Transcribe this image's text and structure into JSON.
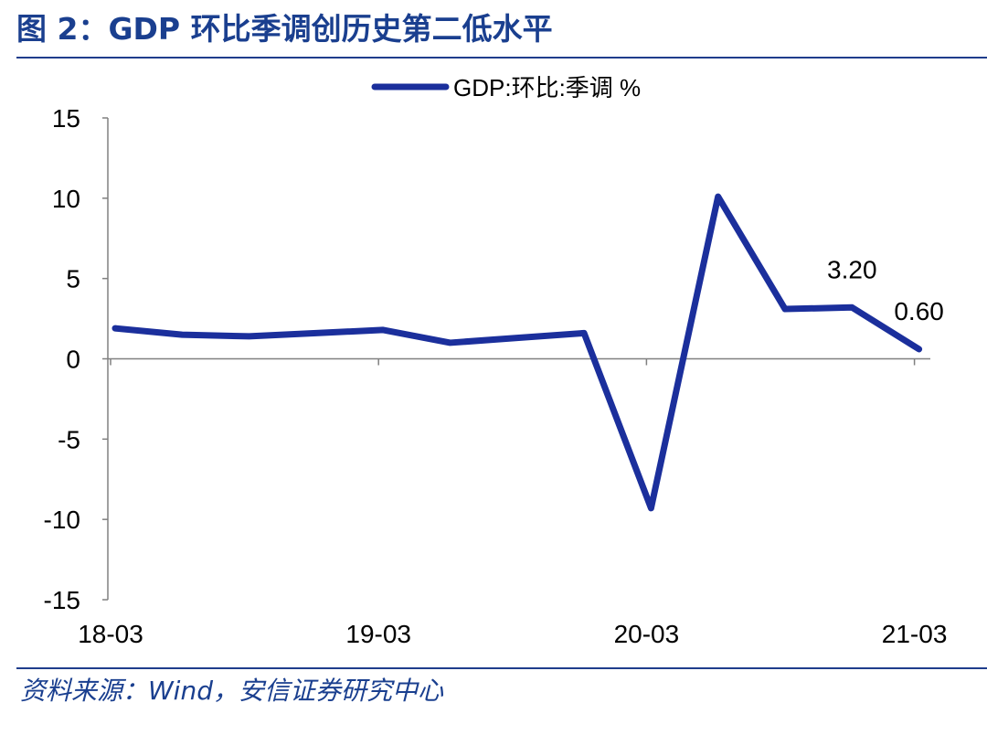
{
  "title": "图 2：GDP 环比季调创历史第二低水平",
  "source": "资料来源：Wind，安信证券研究中心",
  "colors": {
    "series": "#1b2f9c",
    "title": "#1a3f8f",
    "rule": "#1f3d8c"
  },
  "chart_data": {
    "type": "line",
    "x": [
      "18-03",
      "18-06",
      "18-09",
      "18-12",
      "19-03",
      "19-06",
      "19-09",
      "19-12",
      "20-03",
      "20-06",
      "20-09",
      "20-12",
      "21-03"
    ],
    "x_tick_labels": [
      "18-03",
      "19-03",
      "20-03",
      "21-03"
    ],
    "series": [
      {
        "name": "GDP:环比:季调 %",
        "values": [
          1.9,
          1.5,
          1.4,
          1.6,
          1.8,
          1.0,
          1.3,
          1.6,
          -9.3,
          10.1,
          3.1,
          3.2,
          0.6
        ]
      }
    ],
    "annotations": [
      {
        "x": "20-12",
        "text": "3.20"
      },
      {
        "x": "21-03",
        "text": "0.60"
      }
    ],
    "ylim": [
      -15,
      15
    ],
    "yticks": [
      15,
      10,
      5,
      0,
      -5,
      -10,
      -15
    ],
    "legend": "top-center",
    "grid": false
  }
}
